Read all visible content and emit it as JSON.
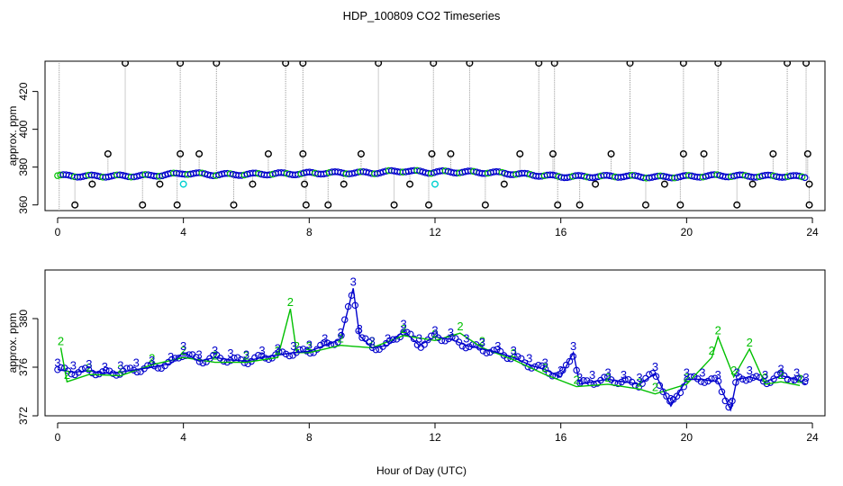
{
  "title": "HDP_100809  CO2 Timeseries",
  "xlabel": "Hour of Day (UTC)",
  "colors": {
    "black": "#000000",
    "green": "#00c000",
    "blue": "#0000cc",
    "cyan": "#00d0d0",
    "grey": "#9a9a9a"
  },
  "chart_data": [
    {
      "type": "scatter",
      "panel": "top",
      "ylabel": "approx. ppm",
      "xlim": [
        -0.4,
        24.4
      ],
      "ylim": [
        357,
        436
      ],
      "x_ticks": [
        0,
        4,
        8,
        12,
        16,
        20,
        24
      ],
      "y_ticks": [
        360,
        380,
        400,
        420
      ],
      "y_tick_labels": [
        "360",
        "380",
        "400",
        "420"
      ],
      "baseline": [
        {
          "x": 0.0,
          "y": 375.5
        },
        {
          "x": 1.0,
          "y": 375.2
        },
        {
          "x": 2.0,
          "y": 375.3
        },
        {
          "x": 3.0,
          "y": 375.5
        },
        {
          "x": 3.8,
          "y": 376.4
        },
        {
          "x": 4.0,
          "y": 376.8
        },
        {
          "x": 5.0,
          "y": 376.0
        },
        {
          "x": 6.0,
          "y": 376.2
        },
        {
          "x": 7.0,
          "y": 376.5
        },
        {
          "x": 7.8,
          "y": 376.5
        },
        {
          "x": 8.0,
          "y": 376.8
        },
        {
          "x": 9.0,
          "y": 377.0
        },
        {
          "x": 10.0,
          "y": 377.0
        },
        {
          "x": 11.0,
          "y": 378.0
        },
        {
          "x": 11.9,
          "y": 377.2
        },
        {
          "x": 12.0,
          "y": 377.5
        },
        {
          "x": 13.0,
          "y": 377.4
        },
        {
          "x": 14.0,
          "y": 377.0
        },
        {
          "x": 15.0,
          "y": 376.0
        },
        {
          "x": 16.0,
          "y": 375.0
        },
        {
          "x": 17.0,
          "y": 375.0
        },
        {
          "x": 18.0,
          "y": 375.2
        },
        {
          "x": 19.0,
          "y": 374.7
        },
        {
          "x": 20.0,
          "y": 375.0
        },
        {
          "x": 21.0,
          "y": 375.5
        },
        {
          "x": 22.0,
          "y": 375.2
        },
        {
          "x": 23.0,
          "y": 375.2
        },
        {
          "x": 23.8,
          "y": 374.8
        }
      ],
      "spikes_high": [
        {
          "x": 2.15,
          "y": 435
        },
        {
          "x": 3.9,
          "y": 435
        },
        {
          "x": 5.05,
          "y": 435
        },
        {
          "x": 7.25,
          "y": 435
        },
        {
          "x": 7.8,
          "y": 435
        },
        {
          "x": 10.2,
          "y": 435
        },
        {
          "x": 11.95,
          "y": 435
        },
        {
          "x": 13.1,
          "y": 435
        },
        {
          "x": 15.3,
          "y": 435
        },
        {
          "x": 15.8,
          "y": 435
        },
        {
          "x": 18.2,
          "y": 435
        },
        {
          "x": 19.9,
          "y": 435
        },
        {
          "x": 21.0,
          "y": 435
        },
        {
          "x": 23.2,
          "y": 435
        },
        {
          "x": 23.8,
          "y": 435
        }
      ],
      "spikes_mid": [
        {
          "x": 1.6,
          "y": 387
        },
        {
          "x": 3.9,
          "y": 387
        },
        {
          "x": 4.5,
          "y": 387
        },
        {
          "x": 6.7,
          "y": 387
        },
        {
          "x": 7.8,
          "y": 387
        },
        {
          "x": 9.65,
          "y": 387
        },
        {
          "x": 11.9,
          "y": 387
        },
        {
          "x": 12.5,
          "y": 387
        },
        {
          "x": 14.7,
          "y": 387
        },
        {
          "x": 15.75,
          "y": 387
        },
        {
          "x": 17.6,
          "y": 387
        },
        {
          "x": 19.9,
          "y": 387
        },
        {
          "x": 20.55,
          "y": 387
        },
        {
          "x": 22.75,
          "y": 387
        },
        {
          "x": 23.85,
          "y": 387
        }
      ],
      "spikes_low": [
        {
          "x": 0.55,
          "y": 360
        },
        {
          "x": 2.7,
          "y": 360
        },
        {
          "x": 3.8,
          "y": 360
        },
        {
          "x": 5.6,
          "y": 360
        },
        {
          "x": 7.9,
          "y": 360
        },
        {
          "x": 8.6,
          "y": 360
        },
        {
          "x": 10.7,
          "y": 360
        },
        {
          "x": 11.8,
          "y": 360
        },
        {
          "x": 13.6,
          "y": 360
        },
        {
          "x": 15.9,
          "y": 360
        },
        {
          "x": 16.6,
          "y": 360
        },
        {
          "x": 18.7,
          "y": 360
        },
        {
          "x": 19.8,
          "y": 360
        },
        {
          "x": 21.6,
          "y": 360
        },
        {
          "x": 23.9,
          "y": 360
        }
      ],
      "spikes_dip": [
        {
          "x": 1.1,
          "y": 371
        },
        {
          "x": 3.25,
          "y": 371
        },
        {
          "x": 6.2,
          "y": 371
        },
        {
          "x": 7.85,
          "y": 371
        },
        {
          "x": 9.1,
          "y": 371
        },
        {
          "x": 11.2,
          "y": 371
        },
        {
          "x": 14.2,
          "y": 371
        },
        {
          "x": 17.1,
          "y": 371
        },
        {
          "x": 19.3,
          "y": 371
        },
        {
          "x": 22.1,
          "y": 371
        },
        {
          "x": 23.9,
          "y": 371
        }
      ],
      "cyan_points": [
        {
          "x": 4.0,
          "y": 371
        },
        {
          "x": 12.0,
          "y": 371
        }
      ]
    },
    {
      "type": "line",
      "panel": "bottom",
      "ylabel": "approx. ppm",
      "xlim": [
        -0.4,
        24.4
      ],
      "ylim": [
        372,
        384
      ],
      "x_ticks": [
        0,
        4,
        8,
        12,
        16,
        20,
        24
      ],
      "y_ticks": [
        372,
        376,
        380
      ],
      "y_tick_labels": [
        "372",
        "376",
        "380"
      ],
      "series": [
        {
          "name": "3",
          "points": [
            {
              "x": 0.0,
              "y": 375.8
            },
            {
              "x": 0.5,
              "y": 375.6
            },
            {
              "x": 1.0,
              "y": 375.7
            },
            {
              "x": 1.5,
              "y": 375.5
            },
            {
              "x": 2.0,
              "y": 375.6
            },
            {
              "x": 2.5,
              "y": 375.8
            },
            {
              "x": 3.0,
              "y": 376.0
            },
            {
              "x": 3.6,
              "y": 376.3
            },
            {
              "x": 4.0,
              "y": 377.2
            },
            {
              "x": 4.5,
              "y": 376.5
            },
            {
              "x": 5.0,
              "y": 376.8
            },
            {
              "x": 5.5,
              "y": 376.6
            },
            {
              "x": 6.0,
              "y": 376.5
            },
            {
              "x": 6.5,
              "y": 376.8
            },
            {
              "x": 7.0,
              "y": 377.0
            },
            {
              "x": 7.5,
              "y": 377.2
            },
            {
              "x": 8.0,
              "y": 377.3
            },
            {
              "x": 8.5,
              "y": 377.8
            },
            {
              "x": 9.0,
              "y": 378.3
            },
            {
              "x": 9.4,
              "y": 382.5
            },
            {
              "x": 9.6,
              "y": 378.6
            },
            {
              "x": 10.0,
              "y": 377.6
            },
            {
              "x": 10.5,
              "y": 377.8
            },
            {
              "x": 11.0,
              "y": 379.0
            },
            {
              "x": 11.5,
              "y": 377.8
            },
            {
              "x": 12.0,
              "y": 378.5
            },
            {
              "x": 12.5,
              "y": 378.3
            },
            {
              "x": 13.0,
              "y": 377.8
            },
            {
              "x": 13.5,
              "y": 377.5
            },
            {
              "x": 14.0,
              "y": 377.2
            },
            {
              "x": 14.5,
              "y": 376.8
            },
            {
              "x": 15.0,
              "y": 376.2
            },
            {
              "x": 15.5,
              "y": 375.8
            },
            {
              "x": 16.0,
              "y": 375.2
            },
            {
              "x": 16.4,
              "y": 377.2
            },
            {
              "x": 16.6,
              "y": 374.6
            },
            {
              "x": 17.0,
              "y": 374.8
            },
            {
              "x": 17.5,
              "y": 375.0
            },
            {
              "x": 18.0,
              "y": 374.8
            },
            {
              "x": 18.5,
              "y": 374.6
            },
            {
              "x": 19.0,
              "y": 375.5
            },
            {
              "x": 19.5,
              "y": 372.8
            },
            {
              "x": 20.0,
              "y": 375.0
            },
            {
              "x": 20.5,
              "y": 375.0
            },
            {
              "x": 21.0,
              "y": 374.8
            },
            {
              "x": 21.4,
              "y": 372.5
            },
            {
              "x": 21.6,
              "y": 375.0
            },
            {
              "x": 22.0,
              "y": 375.2
            },
            {
              "x": 22.5,
              "y": 374.8
            },
            {
              "x": 23.0,
              "y": 375.3
            },
            {
              "x": 23.5,
              "y": 375.0
            },
            {
              "x": 23.8,
              "y": 374.6
            }
          ]
        },
        {
          "name": "2",
          "points": [
            {
              "x": 0.1,
              "y": 377.6
            },
            {
              "x": 0.3,
              "y": 374.8
            },
            {
              "x": 1.0,
              "y": 375.4
            },
            {
              "x": 2.0,
              "y": 375.3
            },
            {
              "x": 3.0,
              "y": 376.2
            },
            {
              "x": 4.0,
              "y": 376.8
            },
            {
              "x": 5.0,
              "y": 376.4
            },
            {
              "x": 6.0,
              "y": 376.4
            },
            {
              "x": 7.0,
              "y": 376.8
            },
            {
              "x": 7.4,
              "y": 380.8
            },
            {
              "x": 7.6,
              "y": 377.2
            },
            {
              "x": 8.0,
              "y": 377.2
            },
            {
              "x": 9.0,
              "y": 377.8
            },
            {
              "x": 10.0,
              "y": 377.6
            },
            {
              "x": 11.0,
              "y": 378.6
            },
            {
              "x": 12.0,
              "y": 378.2
            },
            {
              "x": 12.8,
              "y": 378.8
            },
            {
              "x": 13.5,
              "y": 377.6
            },
            {
              "x": 14.5,
              "y": 376.6
            },
            {
              "x": 15.5,
              "y": 375.4
            },
            {
              "x": 16.5,
              "y": 374.4
            },
            {
              "x": 17.5,
              "y": 374.6
            },
            {
              "x": 18.5,
              "y": 374.2
            },
            {
              "x": 19.0,
              "y": 373.8
            },
            {
              "x": 20.0,
              "y": 374.6
            },
            {
              "x": 20.8,
              "y": 376.8
            },
            {
              "x": 21.0,
              "y": 378.5
            },
            {
              "x": 21.5,
              "y": 375.2
            },
            {
              "x": 22.0,
              "y": 377.5
            },
            {
              "x": 22.5,
              "y": 374.6
            },
            {
              "x": 23.0,
              "y": 374.8
            },
            {
              "x": 23.6,
              "y": 374.5
            }
          ]
        }
      ]
    }
  ]
}
